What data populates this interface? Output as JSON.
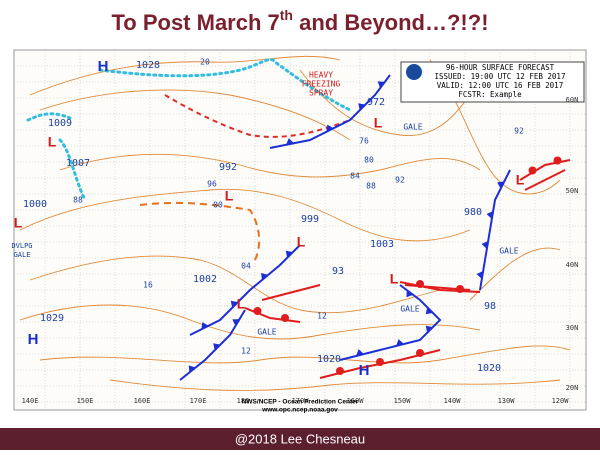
{
  "title": {
    "text": "To Post March 7",
    "sup": "th",
    "rest": " and Beyond…?!?!"
  },
  "footer": "@2018 Lee Chesneau",
  "map": {
    "header": [
      "96-HOUR SURFACE FORECAST",
      "ISSUED: 19:00 UTC 12 FEB 2017",
      "VALID: 12:00 UTC 16 FEB 2017",
      "FCSTR: Example"
    ],
    "pressures": [
      "1028",
      "1009",
      "1007",
      "1000",
      "992",
      "999",
      "1002",
      "93",
      "1003",
      "980",
      "98",
      "1020",
      "1020",
      "1029",
      "972"
    ],
    "isobar_labels": [
      "20",
      "88",
      "96",
      "00",
      "04",
      "16",
      "12",
      "12",
      "76",
      "80",
      "84",
      "88",
      "92",
      "92"
    ],
    "highs": [
      "H",
      "H",
      "H"
    ],
    "lows": [
      "L",
      "L",
      "L",
      "L",
      "L",
      "L",
      "L",
      "L"
    ],
    "gales": [
      "GALE",
      "GALE",
      "GALE",
      "GALE"
    ],
    "dvlpg_gale": [
      "DVLPG",
      "GALE"
    ],
    "freezing_spray": [
      "HEAVY",
      "FREEZING",
      "SPRAY"
    ],
    "latitudes": [
      "60N",
      "50N",
      "40N",
      "30N",
      "20N"
    ],
    "longitudes": [
      "140E",
      "150E",
      "160E",
      "170E",
      "180",
      "170W",
      "160W",
      "150W",
      "140W",
      "130W",
      "120W"
    ],
    "credit": [
      "NWS/NCEP - Ocean Prediction Center",
      "www.opc.ncep.noaa.gov"
    ]
  }
}
